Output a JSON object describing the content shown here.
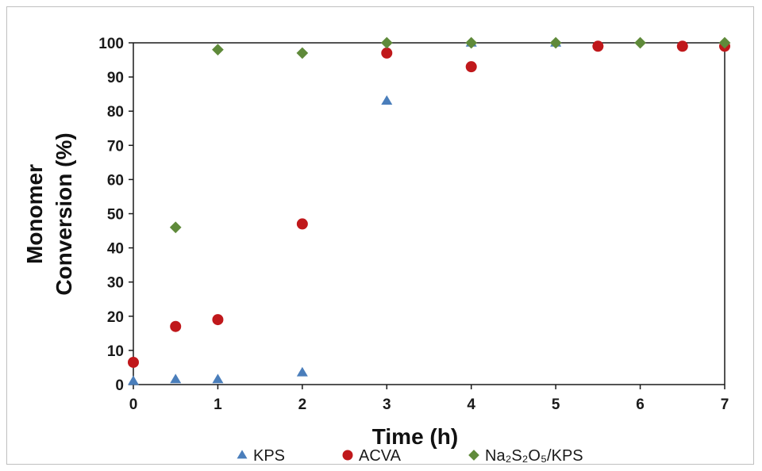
{
  "chart_data": {
    "type": "scatter",
    "title": "",
    "xlabel": "Time (h)",
    "ylabel_lines": [
      "Monomer",
      "Conversion  (%)"
    ],
    "xlim": [
      0,
      7
    ],
    "ylim": [
      0,
      100
    ],
    "xticks": [
      0,
      1,
      2,
      3,
      4,
      5,
      6,
      7
    ],
    "yticks": [
      0,
      10,
      20,
      30,
      40,
      50,
      60,
      70,
      80,
      90,
      100
    ],
    "grid": false,
    "legend_position": "bottom",
    "series": [
      {
        "name": "KPS",
        "marker": "triangle",
        "color": "#4a7ebb",
        "points": [
          [
            0,
            1
          ],
          [
            0.5,
            1.5
          ],
          [
            1,
            1.5
          ],
          [
            2,
            3.5
          ],
          [
            3,
            83
          ],
          [
            4,
            100
          ],
          [
            5,
            100
          ]
        ]
      },
      {
        "name": "ACVA",
        "marker": "circle",
        "color": "#c0181b",
        "points": [
          [
            0,
            6.5
          ],
          [
            0.5,
            17
          ],
          [
            1,
            19
          ],
          [
            2,
            47
          ],
          [
            3,
            97
          ],
          [
            4,
            93
          ],
          [
            5.5,
            99
          ],
          [
            6.5,
            99
          ],
          [
            7,
            99
          ]
        ]
      },
      {
        "name": "Na₂S₂O₅/KPS",
        "marker": "diamond",
        "color": "#5f8a3a",
        "points": [
          [
            0.5,
            46
          ],
          [
            1,
            98
          ],
          [
            2,
            97
          ],
          [
            3,
            100
          ],
          [
            4,
            100
          ],
          [
            5,
            100
          ],
          [
            6,
            100
          ],
          [
            7,
            100
          ]
        ]
      }
    ]
  }
}
